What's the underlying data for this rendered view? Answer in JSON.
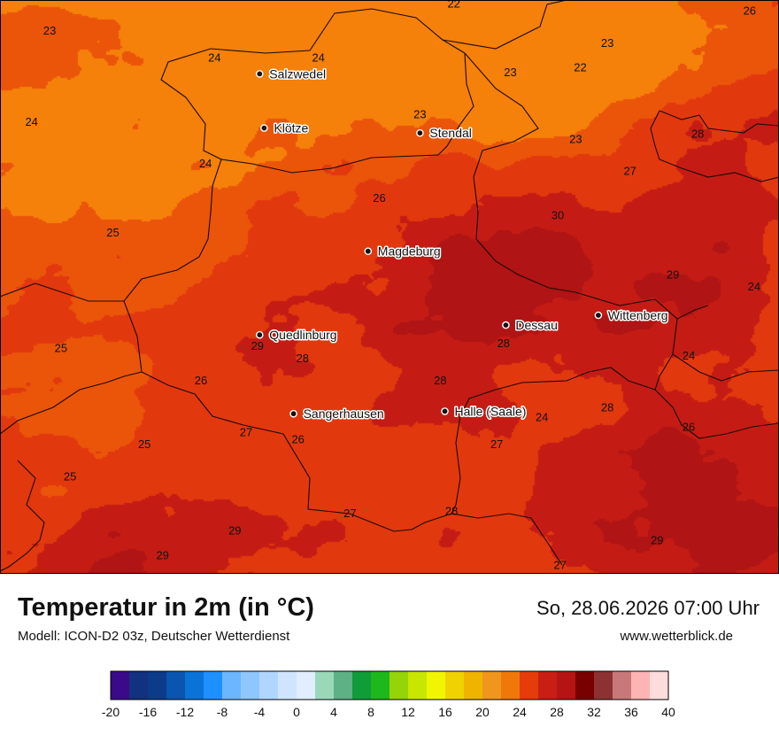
{
  "legend": {
    "title": "Temperatur in 2m (in °C)",
    "model": "Modell: ICON-D2 03z, Deutscher Wetterdienst",
    "datetime": "So, 28.06.2026 07:00 Uhr",
    "website": "www.wetterblick.de",
    "scale_colors": [
      "#3b0a8a",
      "#12317e",
      "#0a3c8a",
      "#0a55b0",
      "#0a73d8",
      "#1e90ff",
      "#6cb6ff",
      "#8fc6ff",
      "#afd6ff",
      "#cfe5ff",
      "#e0eeff",
      "#9ad9b8",
      "#5fb084",
      "#119c3a",
      "#1eb81c",
      "#96d40a",
      "#c8e600",
      "#f0f500",
      "#f0d200",
      "#f0b400",
      "#f0961e",
      "#f0780a",
      "#e63c0a",
      "#c81e14",
      "#b41414",
      "#780000",
      "#8c3232",
      "#c87878",
      "#ffb4b4",
      "#ffdcdc"
    ],
    "scale_ticks": [
      "-20",
      "-16",
      "-12",
      "-8",
      "-4",
      "0",
      "4",
      "8",
      "12",
      "16",
      "20",
      "24",
      "28",
      "32",
      "36",
      "40"
    ]
  },
  "cities": [
    {
      "name": "Salzwedel",
      "lon": 11.15,
      "lat": 52.85
    },
    {
      "name": "Klötze",
      "lon": 11.17,
      "lat": 52.63
    },
    {
      "name": "Stendal",
      "lon": 11.86,
      "lat": 52.61
    },
    {
      "name": "Magdeburg",
      "lon": 11.63,
      "lat": 52.13
    },
    {
      "name": "Quedlinburg",
      "lon": 11.15,
      "lat": 51.79
    },
    {
      "name": "Dessau",
      "lon": 12.24,
      "lat": 51.83
    },
    {
      "name": "Wittenberg",
      "lon": 12.65,
      "lat": 51.87
    },
    {
      "name": "Sangerhausen",
      "lon": 11.3,
      "lat": 51.47
    },
    {
      "name": "Halle (Saale)",
      "lon": 11.97,
      "lat": 51.48
    }
  ],
  "temperature_labels": [
    {
      "value": "22",
      "lon": 12.01,
      "lat": 53.12
    },
    {
      "value": "26",
      "lon": 13.32,
      "lat": 53.09
    },
    {
      "value": "23",
      "lon": 10.22,
      "lat": 53.01
    },
    {
      "value": "24",
      "lon": 10.95,
      "lat": 52.9
    },
    {
      "value": "24",
      "lon": 11.41,
      "lat": 52.9
    },
    {
      "value": "23",
      "lon": 12.69,
      "lat": 52.96
    },
    {
      "value": "22",
      "lon": 12.57,
      "lat": 52.86
    },
    {
      "value": "23",
      "lon": 12.26,
      "lat": 52.84
    },
    {
      "value": "24",
      "lon": 10.14,
      "lat": 52.64
    },
    {
      "value": "23",
      "lon": 11.86,
      "lat": 52.67
    },
    {
      "value": "23",
      "lon": 12.55,
      "lat": 52.57
    },
    {
      "value": "28",
      "lon": 13.09,
      "lat": 52.59
    },
    {
      "value": "24",
      "lon": 10.91,
      "lat": 52.47
    },
    {
      "value": "27",
      "lon": 12.79,
      "lat": 52.44
    },
    {
      "value": "26",
      "lon": 11.68,
      "lat": 52.33
    },
    {
      "value": "30",
      "lon": 12.47,
      "lat": 52.26
    },
    {
      "value": "25",
      "lon": 10.5,
      "lat": 52.19
    },
    {
      "value": "29",
      "lon": 12.98,
      "lat": 52.02
    },
    {
      "value": "24",
      "lon": 13.34,
      "lat": 51.97
    },
    {
      "value": "25",
      "lon": 10.27,
      "lat": 51.72
    },
    {
      "value": "29",
      "lon": 11.14,
      "lat": 51.73
    },
    {
      "value": "28",
      "lon": 11.34,
      "lat": 51.68
    },
    {
      "value": "28",
      "lon": 12.23,
      "lat": 51.74
    },
    {
      "value": "24",
      "lon": 13.05,
      "lat": 51.69
    },
    {
      "value": "26",
      "lon": 10.89,
      "lat": 51.59
    },
    {
      "value": "28",
      "lon": 11.95,
      "lat": 51.59
    },
    {
      "value": "28",
      "lon": 12.69,
      "lat": 51.48
    },
    {
      "value": "24",
      "lon": 12.4,
      "lat": 51.44
    },
    {
      "value": "26",
      "lon": 13.05,
      "lat": 51.4
    },
    {
      "value": "27",
      "lon": 11.09,
      "lat": 51.38
    },
    {
      "value": "25",
      "lon": 10.64,
      "lat": 51.33
    },
    {
      "value": "26",
      "lon": 11.32,
      "lat": 51.35
    },
    {
      "value": "27",
      "lon": 12.2,
      "lat": 51.33
    },
    {
      "value": "25",
      "lon": 10.31,
      "lat": 51.2
    },
    {
      "value": "27",
      "lon": 11.55,
      "lat": 51.05
    },
    {
      "value": "28",
      "lon": 12.0,
      "lat": 51.06
    },
    {
      "value": "29",
      "lon": 11.04,
      "lat": 50.98
    },
    {
      "value": "29",
      "lon": 12.91,
      "lat": 50.94
    },
    {
      "value": "29",
      "lon": 10.72,
      "lat": 50.88
    },
    {
      "value": "27",
      "lon": 12.48,
      "lat": 50.84
    }
  ]
}
